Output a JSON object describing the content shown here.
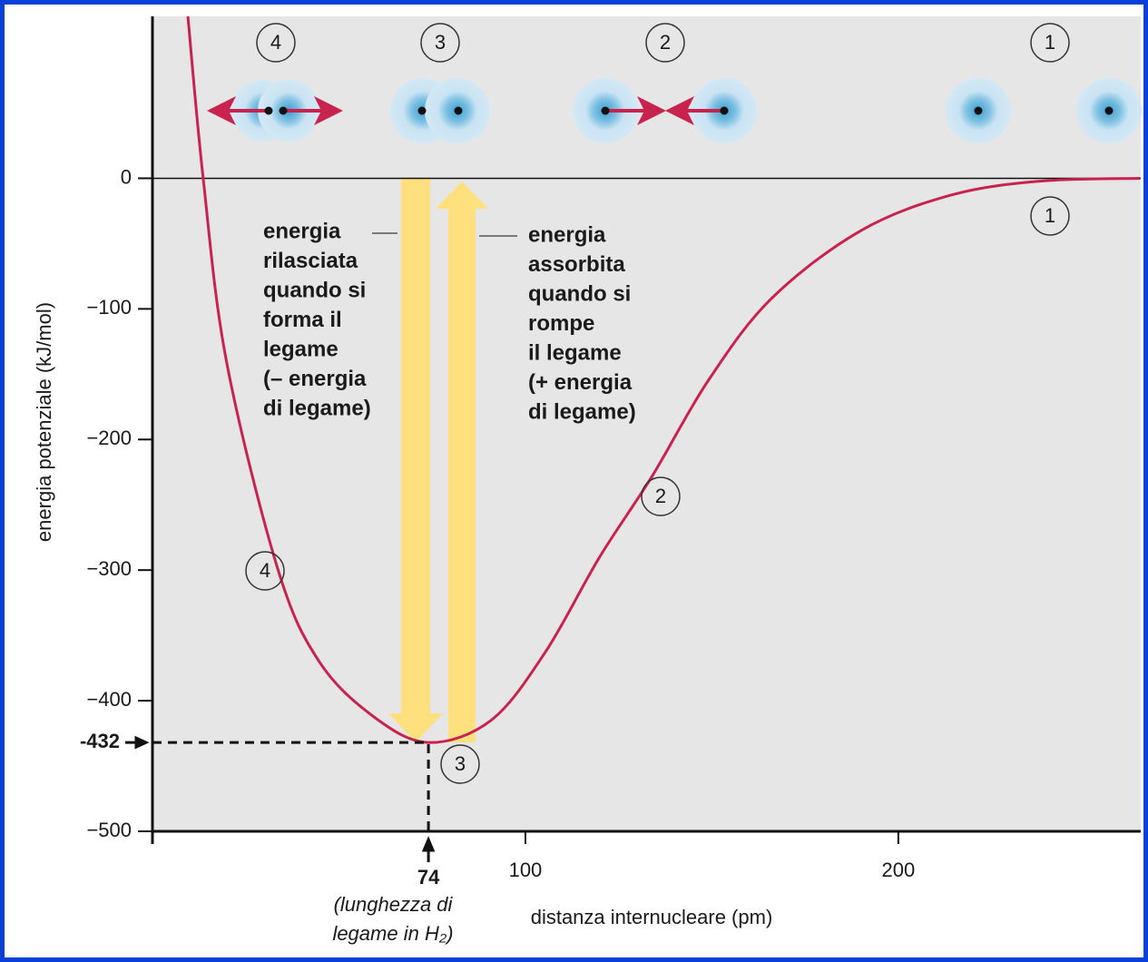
{
  "chart_data": {
    "type": "line",
    "x_label": "distanza internucleare (pm)",
    "y_label": "energia potenziale (kJ/mol)",
    "x": [
      9.5,
      13.6,
      19.9,
      33.7,
      44.7,
      59.2,
      74,
      90.8,
      105.3,
      119.9,
      134,
      149,
      166,
      190,
      214.6,
      238.8,
      264.8
    ],
    "series": [
      {
        "color": "#c8234f",
        "values": [
          124,
          0,
          -141,
          -300,
          -370,
          -412,
          -432,
          -415,
          -363,
          -290,
          -228,
          -155,
          -92,
          -40,
          -12.5,
          -2,
          0
        ]
      }
    ],
    "xlim": [
      0,
      265
    ],
    "ylim": [
      -500,
      124
    ],
    "xticks": [
      100,
      200
    ],
    "yticks": [
      {
        "value": -500,
        "label": "−500"
      },
      {
        "value": -400,
        "label": "−400"
      },
      {
        "value": -300,
        "label": "−300"
      },
      {
        "value": -200,
        "label": "−200"
      },
      {
        "value": -100,
        "label": "−100"
      },
      0
    ],
    "minimum": {
      "x": 74,
      "y": -432
    },
    "bond_note": [
      "(lunghezza di",
      "legame in H₂)"
    ],
    "released_text": [
      "energia",
      "rilasciata",
      "quando si",
      "forma il",
      "legame",
      "(– energia",
      "di legame)"
    ],
    "absorbed_text": [
      "energia",
      "assorbita",
      "quando si",
      "rompe",
      "il legame",
      "(+ energia",
      "di legame)"
    ],
    "top_stage_labels": [
      "4",
      "3",
      "2",
      "1"
    ],
    "curve_stage_labels": [
      "1",
      "2",
      "3",
      "4"
    ]
  }
}
